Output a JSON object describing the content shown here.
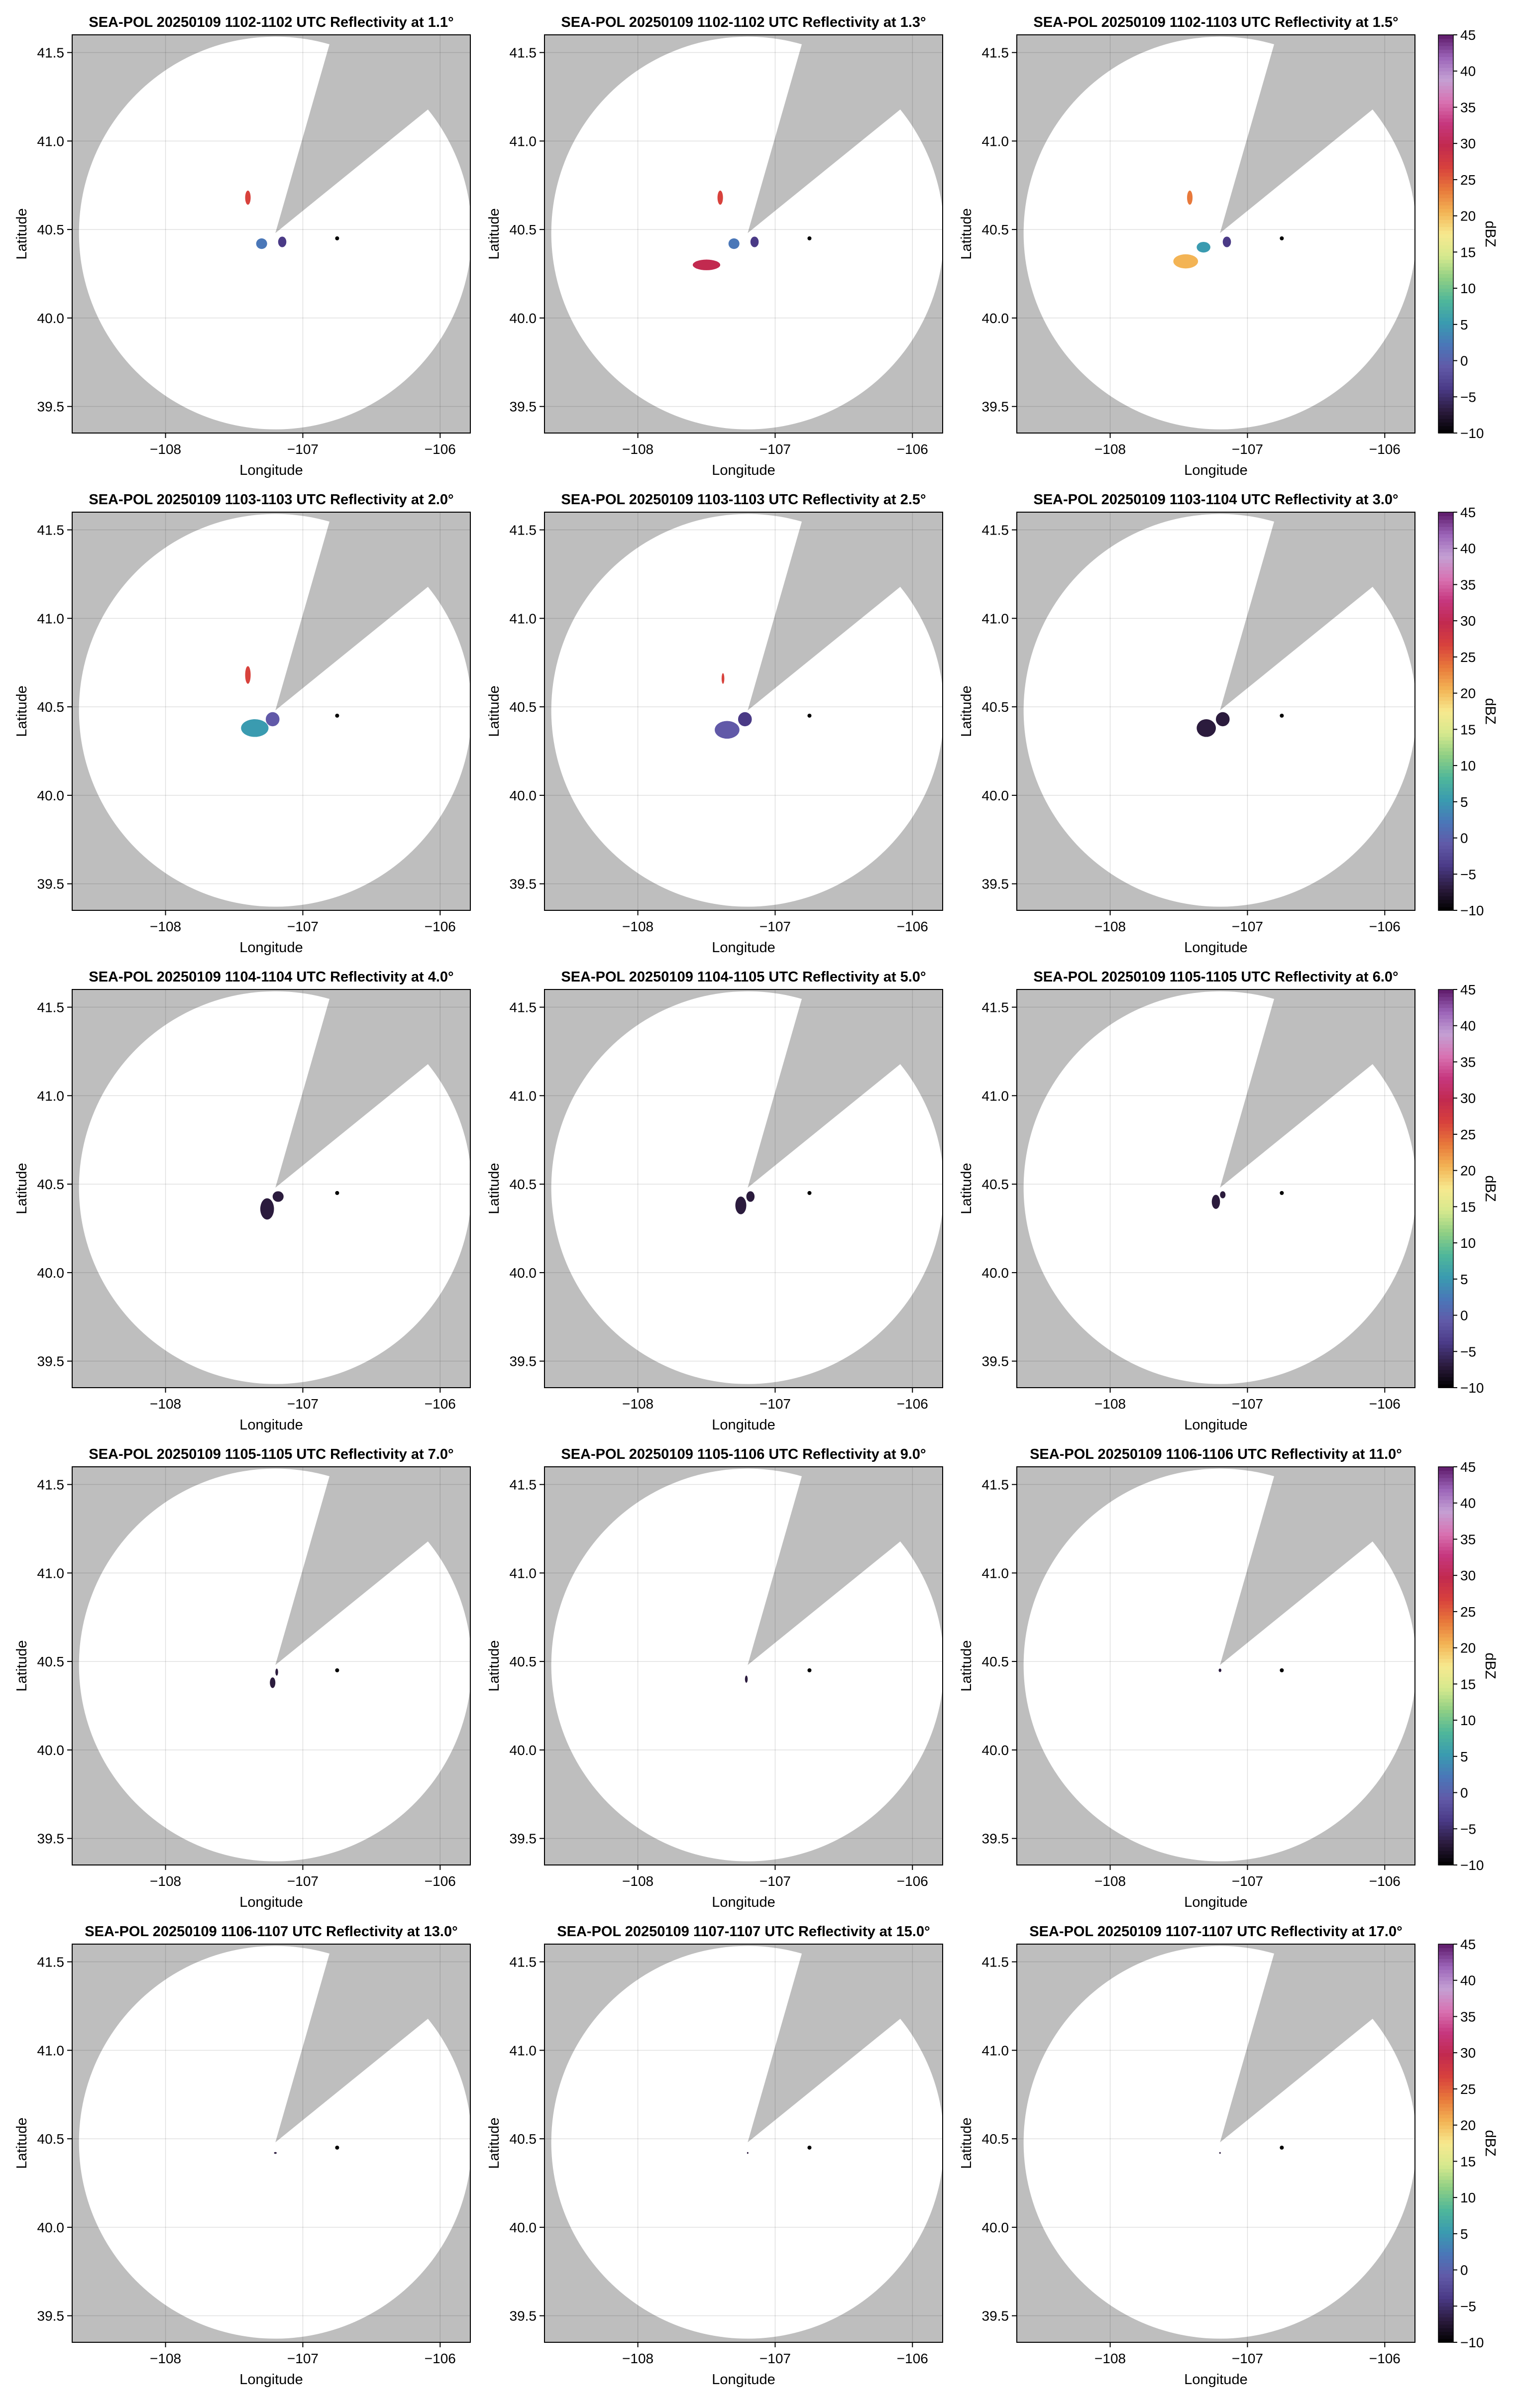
{
  "figure": {
    "colorbar_label": "dBZ",
    "colorbar_ticks": [
      -10,
      -5,
      0,
      5,
      10,
      15,
      20,
      25,
      30,
      35,
      40,
      45
    ],
    "colormap": [
      "#000000",
      "#2b1b3d",
      "#4a3a86",
      "#6159a8",
      "#4a77b8",
      "#3a9bb0",
      "#4fb79a",
      "#8fcf84",
      "#d6e98e",
      "#f7e98f",
      "#f3b455",
      "#e8793b",
      "#d8423c",
      "#c22a4f",
      "#c6377e",
      "#d873b2",
      "#c4a0d4",
      "#9b63b8",
      "#5e1a6a"
    ],
    "background_color": "#bebebe",
    "coverage_color": "#ffffff",
    "radar_marker_color": "#000000"
  },
  "chart_data": [
    {
      "type": "heatmap",
      "title": "SEA-POL 20250109 1102-1102 UTC Reflectivity at 1.1°",
      "xlabel": "Longitude",
      "ylabel": "Latitude",
      "xlim": [
        -108.68,
        -105.78
      ],
      "ylim": [
        39.35,
        41.6
      ],
      "xticks": [
        -108,
        -107,
        -106
      ],
      "yticks": [
        39.5,
        40.0,
        40.5,
        41.0,
        41.5
      ],
      "grid": true,
      "radar_center": [
        -107.2,
        40.48
      ],
      "coverage_radius_deg": 1.43,
      "radar_marker": [
        -106.75,
        40.45
      ],
      "echoes": [
        [
          -107.3,
          40.42,
          0.04,
          0.03,
          4
        ],
        [
          -107.4,
          40.68,
          0.02,
          0.04,
          12
        ],
        [
          -107.15,
          40.43,
          0.03,
          0.03,
          2
        ]
      ]
    },
    {
      "type": "heatmap",
      "title": "SEA-POL 20250109 1102-1102 UTC Reflectivity at 1.3°",
      "xlabel": "Longitude",
      "ylabel": "Latitude",
      "xlim": [
        -108.68,
        -105.78
      ],
      "ylim": [
        39.35,
        41.6
      ],
      "xticks": [
        -108,
        -107,
        -106
      ],
      "yticks": [
        39.5,
        40.0,
        40.5,
        41.0,
        41.5
      ],
      "grid": true,
      "radar_center": [
        -107.2,
        40.48
      ],
      "coverage_radius_deg": 1.43,
      "radar_marker": [
        -106.75,
        40.45
      ],
      "echoes": [
        [
          -107.3,
          40.42,
          0.04,
          0.03,
          4
        ],
        [
          -107.4,
          40.68,
          0.02,
          0.04,
          12
        ],
        [
          -107.5,
          40.3,
          0.1,
          0.03,
          13
        ],
        [
          -107.15,
          40.43,
          0.03,
          0.03,
          2
        ]
      ]
    },
    {
      "type": "heatmap",
      "title": "SEA-POL 20250109 1102-1103 UTC Reflectivity at 1.5°",
      "xlabel": "Longitude",
      "ylabel": "Latitude",
      "xlim": [
        -108.68,
        -105.78
      ],
      "ylim": [
        39.35,
        41.6
      ],
      "xticks": [
        -108,
        -107,
        -106
      ],
      "yticks": [
        39.5,
        40.0,
        40.5,
        41.0,
        41.5
      ],
      "grid": true,
      "radar_center": [
        -107.2,
        40.48
      ],
      "coverage_radius_deg": 1.43,
      "radar_marker": [
        -106.75,
        40.45
      ],
      "echoes": [
        [
          -107.32,
          40.4,
          0.05,
          0.03,
          5
        ],
        [
          -107.42,
          40.68,
          0.02,
          0.04,
          11
        ],
        [
          -107.45,
          40.32,
          0.09,
          0.04,
          10
        ],
        [
          -107.15,
          40.43,
          0.03,
          0.03,
          2
        ]
      ]
    },
    {
      "type": "heatmap",
      "title": "SEA-POL 20250109 1103-1103 UTC Reflectivity at 2.0°",
      "xlabel": "Longitude",
      "ylabel": "Latitude",
      "xlim": [
        -108.68,
        -105.78
      ],
      "ylim": [
        39.35,
        41.6
      ],
      "xticks": [
        -108,
        -107,
        -106
      ],
      "yticks": [
        39.5,
        40.0,
        40.5,
        41.0,
        41.5
      ],
      "grid": true,
      "radar_center": [
        -107.2,
        40.48
      ],
      "coverage_radius_deg": 1.43,
      "radar_marker": [
        -106.75,
        40.45
      ],
      "echoes": [
        [
          -107.35,
          40.38,
          0.1,
          0.05,
          5
        ],
        [
          -107.22,
          40.43,
          0.05,
          0.04,
          3
        ],
        [
          -107.4,
          40.68,
          0.02,
          0.05,
          12
        ]
      ]
    },
    {
      "type": "heatmap",
      "title": "SEA-POL 20250109 1103-1103 UTC Reflectivity at 2.5°",
      "xlabel": "Longitude",
      "ylabel": "Latitude",
      "xlim": [
        -108.68,
        -105.78
      ],
      "ylim": [
        39.35,
        41.6
      ],
      "xticks": [
        -108,
        -107,
        -106
      ],
      "yticks": [
        39.5,
        40.0,
        40.5,
        41.0,
        41.5
      ],
      "grid": true,
      "radar_center": [
        -107.2,
        40.48
      ],
      "coverage_radius_deg": 1.43,
      "radar_marker": [
        -106.75,
        40.45
      ],
      "echoes": [
        [
          -107.35,
          40.37,
          0.09,
          0.05,
          3
        ],
        [
          -107.22,
          40.43,
          0.05,
          0.04,
          2
        ],
        [
          -107.38,
          40.66,
          0.01,
          0.03,
          12
        ]
      ]
    },
    {
      "type": "heatmap",
      "title": "SEA-POL 20250109 1103-1104 UTC Reflectivity at 3.0°",
      "xlabel": "Longitude",
      "ylabel": "Latitude",
      "xlim": [
        -108.68,
        -105.78
      ],
      "ylim": [
        39.35,
        41.6
      ],
      "xticks": [
        -108,
        -107,
        -106
      ],
      "yticks": [
        39.5,
        40.0,
        40.5,
        41.0,
        41.5
      ],
      "grid": true,
      "radar_center": [
        -107.2,
        40.48
      ],
      "coverage_radius_deg": 1.43,
      "radar_marker": [
        -106.75,
        40.45
      ],
      "echoes": [
        [
          -107.3,
          40.38,
          0.07,
          0.05,
          1
        ],
        [
          -107.18,
          40.43,
          0.05,
          0.04,
          1
        ]
      ]
    },
    {
      "type": "heatmap",
      "title": "SEA-POL 20250109 1104-1104 UTC Reflectivity at 4.0°",
      "xlabel": "Longitude",
      "ylabel": "Latitude",
      "xlim": [
        -108.68,
        -105.78
      ],
      "ylim": [
        39.35,
        41.6
      ],
      "xticks": [
        -108,
        -107,
        -106
      ],
      "yticks": [
        39.5,
        40.0,
        40.5,
        41.0,
        41.5
      ],
      "grid": true,
      "radar_center": [
        -107.2,
        40.48
      ],
      "coverage_radius_deg": 1.43,
      "radar_marker": [
        -106.75,
        40.45
      ],
      "echoes": [
        [
          -107.26,
          40.36,
          0.05,
          0.06,
          1
        ],
        [
          -107.18,
          40.43,
          0.04,
          0.03,
          1
        ]
      ]
    },
    {
      "type": "heatmap",
      "title": "SEA-POL 20250109 1104-1105 UTC Reflectivity at 5.0°",
      "xlabel": "Longitude",
      "ylabel": "Latitude",
      "xlim": [
        -108.68,
        -105.78
      ],
      "ylim": [
        39.35,
        41.6
      ],
      "xticks": [
        -108,
        -107,
        -106
      ],
      "yticks": [
        39.5,
        40.0,
        40.5,
        41.0,
        41.5
      ],
      "grid": true,
      "radar_center": [
        -107.2,
        40.48
      ],
      "coverage_radius_deg": 1.43,
      "radar_marker": [
        -106.75,
        40.45
      ],
      "echoes": [
        [
          -107.25,
          40.38,
          0.04,
          0.05,
          1
        ],
        [
          -107.18,
          40.43,
          0.03,
          0.03,
          1
        ]
      ]
    },
    {
      "type": "heatmap",
      "title": "SEA-POL 20250109 1105-1105 UTC Reflectivity at 6.0°",
      "xlabel": "Longitude",
      "ylabel": "Latitude",
      "xlim": [
        -108.68,
        -105.78
      ],
      "ylim": [
        39.35,
        41.6
      ],
      "xticks": [
        -108,
        -107,
        -106
      ],
      "yticks": [
        39.5,
        40.0,
        40.5,
        41.0,
        41.5
      ],
      "grid": true,
      "radar_center": [
        -107.2,
        40.48
      ],
      "coverage_radius_deg": 1.43,
      "radar_marker": [
        -106.75,
        40.45
      ],
      "echoes": [
        [
          -107.23,
          40.4,
          0.03,
          0.04,
          1
        ],
        [
          -107.18,
          40.44,
          0.02,
          0.02,
          1
        ]
      ]
    },
    {
      "type": "heatmap",
      "title": "SEA-POL 20250109 1105-1105 UTC Reflectivity at 7.0°",
      "xlabel": "Longitude",
      "ylabel": "Latitude",
      "xlim": [
        -108.68,
        -105.78
      ],
      "ylim": [
        39.35,
        41.6
      ],
      "xticks": [
        -108,
        -107,
        -106
      ],
      "yticks": [
        39.5,
        40.0,
        40.5,
        41.0,
        41.5
      ],
      "grid": true,
      "radar_center": [
        -107.2,
        40.48
      ],
      "coverage_radius_deg": 1.43,
      "radar_marker": [
        -106.75,
        40.45
      ],
      "echoes": [
        [
          -107.22,
          40.38,
          0.02,
          0.03,
          1
        ],
        [
          -107.19,
          40.44,
          0.01,
          0.02,
          1
        ]
      ]
    },
    {
      "type": "heatmap",
      "title": "SEA-POL 20250109 1105-1106 UTC Reflectivity at 9.0°",
      "xlabel": "Longitude",
      "ylabel": "Latitude",
      "xlim": [
        -108.68,
        -105.78
      ],
      "ylim": [
        39.35,
        41.6
      ],
      "xticks": [
        -108,
        -107,
        -106
      ],
      "yticks": [
        39.5,
        40.0,
        40.5,
        41.0,
        41.5
      ],
      "grid": true,
      "radar_center": [
        -107.2,
        40.48
      ],
      "coverage_radius_deg": 1.43,
      "radar_marker": [
        -106.75,
        40.45
      ],
      "echoes": [
        [
          -107.21,
          40.4,
          0.01,
          0.02,
          1
        ]
      ]
    },
    {
      "type": "heatmap",
      "title": "SEA-POL 20250109 1106-1106 UTC Reflectivity at 11.0°",
      "xlabel": "Longitude",
      "ylabel": "Latitude",
      "xlim": [
        -108.68,
        -105.78
      ],
      "ylim": [
        39.35,
        41.6
      ],
      "xticks": [
        -108,
        -107,
        -106
      ],
      "yticks": [
        39.5,
        40.0,
        40.5,
        41.0,
        41.5
      ],
      "grid": true,
      "radar_center": [
        -107.2,
        40.48
      ],
      "coverage_radius_deg": 1.43,
      "radar_marker": [
        -106.75,
        40.45
      ],
      "echoes": [
        [
          -107.2,
          40.45,
          0.01,
          0.01,
          1
        ]
      ]
    },
    {
      "type": "heatmap",
      "title": "SEA-POL 20250109 1106-1107 UTC Reflectivity at 13.0°",
      "xlabel": "Longitude",
      "ylabel": "Latitude",
      "xlim": [
        -108.68,
        -105.78
      ],
      "ylim": [
        39.35,
        41.6
      ],
      "xticks": [
        -108,
        -107,
        -106
      ],
      "yticks": [
        39.5,
        40.0,
        40.5,
        41.0,
        41.5
      ],
      "grid": true,
      "radar_center": [
        -107.2,
        40.48
      ],
      "coverage_radius_deg": 1.43,
      "radar_marker": [
        -106.75,
        40.45
      ],
      "echoes": [
        [
          -107.2,
          40.42,
          0.01,
          0.005,
          1
        ]
      ]
    },
    {
      "type": "heatmap",
      "title": "SEA-POL 20250109 1107-1107 UTC Reflectivity at 15.0°",
      "xlabel": "Longitude",
      "ylabel": "Latitude",
      "xlim": [
        -108.68,
        -105.78
      ],
      "ylim": [
        39.35,
        41.6
      ],
      "xticks": [
        -108,
        -107,
        -106
      ],
      "yticks": [
        39.5,
        40.0,
        40.5,
        41.0,
        41.5
      ],
      "grid": true,
      "radar_center": [
        -107.2,
        40.48
      ],
      "coverage_radius_deg": 1.43,
      "radar_marker": [
        -106.75,
        40.45
      ],
      "echoes": [
        [
          -107.2,
          40.42,
          0.005,
          0.005,
          1
        ]
      ]
    },
    {
      "type": "heatmap",
      "title": "SEA-POL 20250109 1107-1107 UTC Reflectivity at 17.0°",
      "xlabel": "Longitude",
      "ylabel": "Latitude",
      "xlim": [
        -108.68,
        -105.78
      ],
      "ylim": [
        39.35,
        41.6
      ],
      "xticks": [
        -108,
        -107,
        -106
      ],
      "yticks": [
        39.5,
        40.0,
        40.5,
        41.0,
        41.5
      ],
      "grid": true,
      "radar_center": [
        -107.2,
        40.48
      ],
      "coverage_radius_deg": 1.43,
      "radar_marker": [
        -106.75,
        40.45
      ],
      "echoes": [
        [
          -107.2,
          40.42,
          0.005,
          0.005,
          1
        ]
      ]
    }
  ]
}
